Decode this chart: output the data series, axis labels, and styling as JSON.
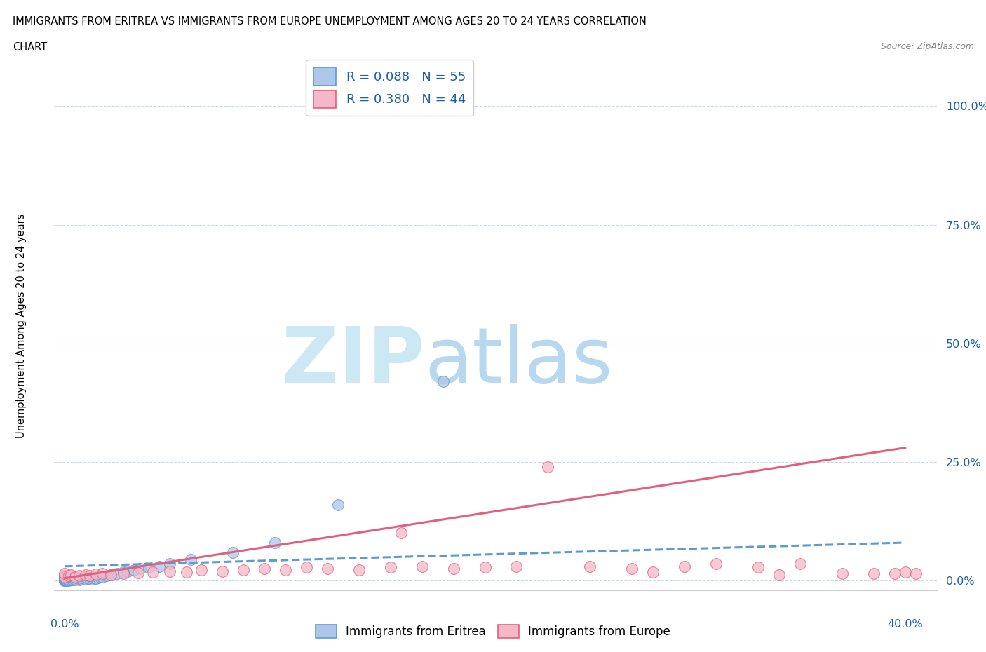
{
  "title_line1": "IMMIGRANTS FROM ERITREA VS IMMIGRANTS FROM EUROPE UNEMPLOYMENT AMONG AGES 20 TO 24 YEARS CORRELATION",
  "title_line2": "CHART",
  "source": "Source: ZipAtlas.com",
  "ylabel": "Unemployment Among Ages 20 to 24 years",
  "ytick_labels": [
    "0.0%",
    "25.0%",
    "50.0%",
    "75.0%",
    "100.0%"
  ],
  "ytick_values": [
    0.0,
    0.25,
    0.5,
    0.75,
    1.0
  ],
  "xtick_values": [
    0.0,
    0.05,
    0.1,
    0.15,
    0.2,
    0.25,
    0.3,
    0.35,
    0.4
  ],
  "xlim": [
    -0.005,
    0.415
  ],
  "ylim": [
    -0.02,
    1.1
  ],
  "legend_r1": "R = 0.088   N = 55",
  "legend_r2": "R = 0.380   N = 44",
  "blue_scatter_color": "#aec6e8",
  "blue_edge_color": "#5b9bd5",
  "pink_scatter_color": "#f4b8c8",
  "pink_edge_color": "#e0607e",
  "blue_line_color": "#5b9bd5",
  "pink_line_color": "#e0607e",
  "watermark_zip_color": "#cce0f0",
  "watermark_atlas_color": "#c8dff0",
  "background_color": "#ffffff",
  "grid_color": "#c8d8e8",
  "legend_text_color": "#1a5fa8",
  "blue_dots_x": [
    0.0,
    0.0,
    0.0,
    0.0,
    0.0,
    0.0,
    0.0,
    0.0,
    0.0,
    0.0,
    0.0,
    0.0,
    0.0,
    0.0,
    0.0,
    0.001,
    0.001,
    0.002,
    0.002,
    0.003,
    0.003,
    0.004,
    0.004,
    0.005,
    0.005,
    0.005,
    0.007,
    0.007,
    0.008,
    0.008,
    0.01,
    0.01,
    0.011,
    0.012,
    0.013,
    0.014,
    0.015,
    0.016,
    0.017,
    0.018,
    0.02,
    0.022,
    0.025,
    0.028,
    0.03,
    0.033,
    0.036,
    0.04,
    0.045,
    0.05,
    0.06,
    0.08,
    0.1,
    0.13,
    0.18
  ],
  "blue_dots_y": [
    0.0,
    0.0,
    0.0,
    0.002,
    0.002,
    0.003,
    0.003,
    0.004,
    0.004,
    0.005,
    0.005,
    0.006,
    0.007,
    0.008,
    0.01,
    0.0,
    0.003,
    0.0,
    0.002,
    0.001,
    0.004,
    0.002,
    0.006,
    0.001,
    0.003,
    0.007,
    0.002,
    0.005,
    0.003,
    0.006,
    0.003,
    0.007,
    0.004,
    0.005,
    0.006,
    0.004,
    0.005,
    0.006,
    0.007,
    0.008,
    0.01,
    0.012,
    0.015,
    0.018,
    0.02,
    0.022,
    0.025,
    0.028,
    0.03,
    0.035,
    0.045,
    0.06,
    0.08,
    0.16,
    0.42
  ],
  "pink_dots_x": [
    0.0,
    0.0,
    0.002,
    0.003,
    0.005,
    0.007,
    0.01,
    0.012,
    0.015,
    0.018,
    0.022,
    0.028,
    0.035,
    0.042,
    0.05,
    0.058,
    0.065,
    0.075,
    0.085,
    0.095,
    0.105,
    0.115,
    0.125,
    0.14,
    0.155,
    0.17,
    0.185,
    0.2,
    0.215,
    0.23,
    0.25,
    0.27,
    0.295,
    0.31,
    0.33,
    0.35,
    0.37,
    0.385,
    0.395,
    0.4,
    0.405,
    0.34,
    0.28,
    0.16
  ],
  "pink_dots_y": [
    0.008,
    0.015,
    0.01,
    0.012,
    0.008,
    0.01,
    0.012,
    0.01,
    0.013,
    0.015,
    0.012,
    0.015,
    0.017,
    0.018,
    0.02,
    0.018,
    0.022,
    0.02,
    0.022,
    0.025,
    0.023,
    0.028,
    0.025,
    0.022,
    0.028,
    0.03,
    0.025,
    0.028,
    0.03,
    0.24,
    0.03,
    0.025,
    0.03,
    0.035,
    0.028,
    0.035,
    0.015,
    0.015,
    0.015,
    0.018,
    0.015,
    0.012,
    0.018,
    0.1
  ],
  "blue_line_x": [
    0.0,
    0.4
  ],
  "blue_line_y": [
    0.03,
    0.08
  ],
  "pink_line_x": [
    0.0,
    0.4
  ],
  "pink_line_y": [
    0.005,
    0.28
  ]
}
